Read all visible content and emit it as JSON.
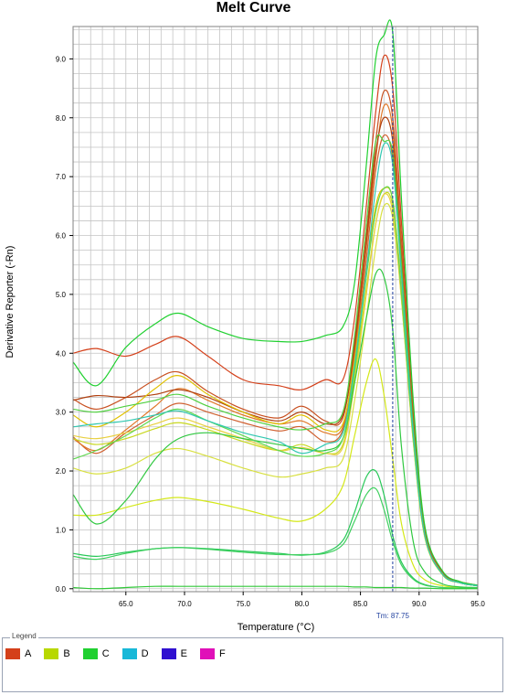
{
  "chart_data": {
    "type": "line",
    "title": "Melt Curve",
    "xlabel": "Temperature (°C)",
    "ylabel": "Derivative Reporter (-Rn)",
    "xlim": [
      60.5,
      95.0
    ],
    "ylim": [
      -0.05,
      9.55
    ],
    "x_ticks": [
      "65.0",
      "70.0",
      "75.0",
      "80.0",
      "85.0",
      "90.0",
      "95.0"
    ],
    "y_ticks": [
      "0.0",
      "1.0",
      "2.0",
      "3.0",
      "4.0",
      "5.0",
      "6.0",
      "7.0",
      "8.0",
      "9.0"
    ],
    "grid": true,
    "tm": {
      "x": 87.75,
      "label": "Tm: 87.75"
    },
    "x": [
      60.5,
      62.5,
      65.0,
      67.5,
      69.5,
      72.0,
      75.0,
      78.0,
      80.0,
      82.0,
      83.5,
      84.5,
      85.5,
      86.3,
      87.0,
      87.75,
      88.5,
      89.5,
      90.5,
      92.0,
      93.5,
      95.0
    ],
    "series": [
      {
        "group": "A",
        "values": [
          4.0,
          4.08,
          3.95,
          4.15,
          4.28,
          3.95,
          3.55,
          3.45,
          3.38,
          3.55,
          3.55,
          4.6,
          6.5,
          8.1,
          9.05,
          8.5,
          6.2,
          3.0,
          1.0,
          0.28,
          0.12,
          0.06
        ]
      },
      {
        "group": "A",
        "values": [
          3.22,
          3.05,
          3.25,
          3.55,
          3.68,
          3.35,
          3.05,
          2.9,
          3.1,
          2.85,
          2.9,
          4.2,
          6.0,
          7.6,
          8.45,
          8.0,
          5.9,
          2.9,
          0.95,
          0.25,
          0.1,
          0.05
        ]
      },
      {
        "group": "A",
        "values": [
          2.58,
          2.3,
          2.65,
          2.95,
          3.15,
          3.0,
          2.82,
          2.68,
          2.75,
          2.5,
          2.7,
          3.9,
          5.6,
          7.1,
          7.7,
          7.3,
          5.4,
          2.7,
          0.9,
          0.24,
          0.1,
          0.05
        ]
      },
      {
        "group": "A",
        "values": [
          2.55,
          2.35,
          2.7,
          3.1,
          3.4,
          3.2,
          2.95,
          2.8,
          2.85,
          2.65,
          2.75,
          4.0,
          5.8,
          7.3,
          8.2,
          7.8,
          5.7,
          2.85,
          0.92,
          0.25,
          0.1,
          0.05
        ]
      },
      {
        "group": "A",
        "values": [
          3.2,
          3.28,
          3.25,
          3.3,
          3.38,
          3.25,
          3.0,
          2.85,
          3.0,
          2.8,
          2.95,
          4.1,
          5.9,
          7.4,
          8.0,
          7.6,
          5.6,
          2.8,
          0.9,
          0.25,
          0.1,
          0.05
        ]
      },
      {
        "group": "B",
        "values": [
          2.95,
          2.75,
          3.0,
          3.4,
          3.62,
          3.3,
          3.0,
          2.8,
          2.95,
          2.7,
          2.8,
          3.9,
          5.4,
          6.5,
          6.8,
          6.6,
          5.1,
          2.6,
          0.9,
          0.25,
          0.1,
          0.05
        ]
      },
      {
        "group": "B",
        "values": [
          2.55,
          2.45,
          2.55,
          2.72,
          2.82,
          2.7,
          2.5,
          2.35,
          2.45,
          2.3,
          2.45,
          3.6,
          5.1,
          6.2,
          6.7,
          6.5,
          5.0,
          2.55,
          0.88,
          0.24,
          0.1,
          0.05
        ]
      },
      {
        "group": "B",
        "values": [
          2.05,
          1.95,
          2.05,
          2.3,
          2.38,
          2.25,
          2.05,
          1.9,
          1.95,
          2.05,
          2.2,
          3.2,
          4.6,
          5.8,
          6.5,
          6.3,
          4.9,
          2.5,
          0.86,
          0.24,
          0.1,
          0.05
        ]
      },
      {
        "group": "B",
        "values": [
          1.25,
          1.25,
          1.38,
          1.5,
          1.55,
          1.48,
          1.35,
          1.2,
          1.15,
          1.35,
          1.75,
          2.6,
          3.5,
          3.9,
          3.3,
          2.2,
          1.1,
          0.4,
          0.15,
          0.05,
          0.02,
          0.01
        ]
      },
      {
        "group": "B",
        "values": [
          2.6,
          2.55,
          2.65,
          2.8,
          2.9,
          2.75,
          2.55,
          2.35,
          2.4,
          2.3,
          2.4,
          3.5,
          5.0,
          6.2,
          6.7,
          6.4,
          4.9,
          2.5,
          0.86,
          0.24,
          0.1,
          0.05
        ]
      },
      {
        "group": "C",
        "values": [
          3.85,
          3.45,
          4.1,
          4.5,
          4.68,
          4.45,
          4.25,
          4.2,
          4.2,
          4.3,
          4.45,
          5.2,
          7.2,
          9.0,
          9.4,
          9.45,
          6.6,
          3.2,
          1.05,
          0.3,
          0.12,
          0.06
        ]
      },
      {
        "group": "C",
        "values": [
          1.6,
          1.1,
          1.5,
          2.2,
          2.55,
          2.65,
          2.55,
          2.45,
          2.38,
          2.35,
          2.55,
          3.5,
          4.6,
          5.35,
          5.3,
          4.4,
          2.4,
          0.8,
          0.28,
          0.08,
          0.03,
          0.02
        ]
      },
      {
        "group": "C",
        "values": [
          0.6,
          0.55,
          0.62,
          0.68,
          0.7,
          0.68,
          0.64,
          0.6,
          0.57,
          0.62,
          0.82,
          1.3,
          1.9,
          2.0,
          1.6,
          0.9,
          0.45,
          0.18,
          0.07,
          0.02,
          0.01,
          0.01
        ]
      },
      {
        "group": "C",
        "values": [
          0.55,
          0.5,
          0.6,
          0.68,
          0.7,
          0.67,
          0.62,
          0.58,
          0.58,
          0.6,
          0.75,
          1.15,
          1.6,
          1.7,
          1.35,
          0.8,
          0.4,
          0.16,
          0.06,
          0.02,
          0.01,
          0.01
        ]
      },
      {
        "group": "C",
        "values": [
          0.02,
          0.0,
          0.02,
          0.04,
          0.04,
          0.04,
          0.04,
          0.04,
          0.04,
          0.04,
          0.04,
          0.03,
          0.03,
          0.02,
          0.02,
          0.02,
          0.02,
          0.01,
          0.01,
          0.0,
          0.0,
          0.0
        ]
      },
      {
        "group": "C",
        "values": [
          3.05,
          3.0,
          3.1,
          3.2,
          3.3,
          3.1,
          2.9,
          2.75,
          2.7,
          2.8,
          3.0,
          4.3,
          6.2,
          7.6,
          7.6,
          7.4,
          5.5,
          2.75,
          0.9,
          0.25,
          0.1,
          0.05
        ]
      },
      {
        "group": "C",
        "values": [
          2.2,
          2.35,
          2.6,
          2.9,
          3.05,
          2.85,
          2.6,
          2.35,
          2.25,
          2.3,
          2.55,
          3.7,
          5.3,
          6.4,
          6.8,
          6.6,
          5.0,
          2.55,
          0.88,
          0.24,
          0.1,
          0.05
        ]
      },
      {
        "group": "D",
        "values": [
          2.75,
          2.8,
          2.85,
          2.95,
          3.02,
          2.85,
          2.65,
          2.5,
          2.3,
          2.45,
          2.65,
          3.8,
          5.4,
          6.8,
          7.55,
          7.2,
          5.3,
          2.65,
          0.9,
          0.25,
          0.1,
          0.05
        ]
      }
    ],
    "legend": [
      {
        "label": "A",
        "color": "#d4401a"
      },
      {
        "label": "B",
        "color": "#b8d800"
      },
      {
        "label": "C",
        "color": "#20d030"
      },
      {
        "label": "D",
        "color": "#18b8d8"
      },
      {
        "label": "E",
        "color": "#3010d0"
      },
      {
        "label": "F",
        "color": "#e010b8"
      }
    ],
    "legend_title": "Legend",
    "series_colors": {
      "A": [
        "#d4401a",
        "#c85020",
        "#d06030",
        "#e07828",
        "#b04010"
      ],
      "B": [
        "#e0c000",
        "#c8d820",
        "#d8e040",
        "#d4e818",
        "#e8d040"
      ],
      "C": [
        "#20d030",
        "#30c840",
        "#28c858",
        "#40d060",
        "#30c838",
        "#50d040",
        "#60d850"
      ],
      "D": [
        "#30c8b0"
      ]
    }
  }
}
